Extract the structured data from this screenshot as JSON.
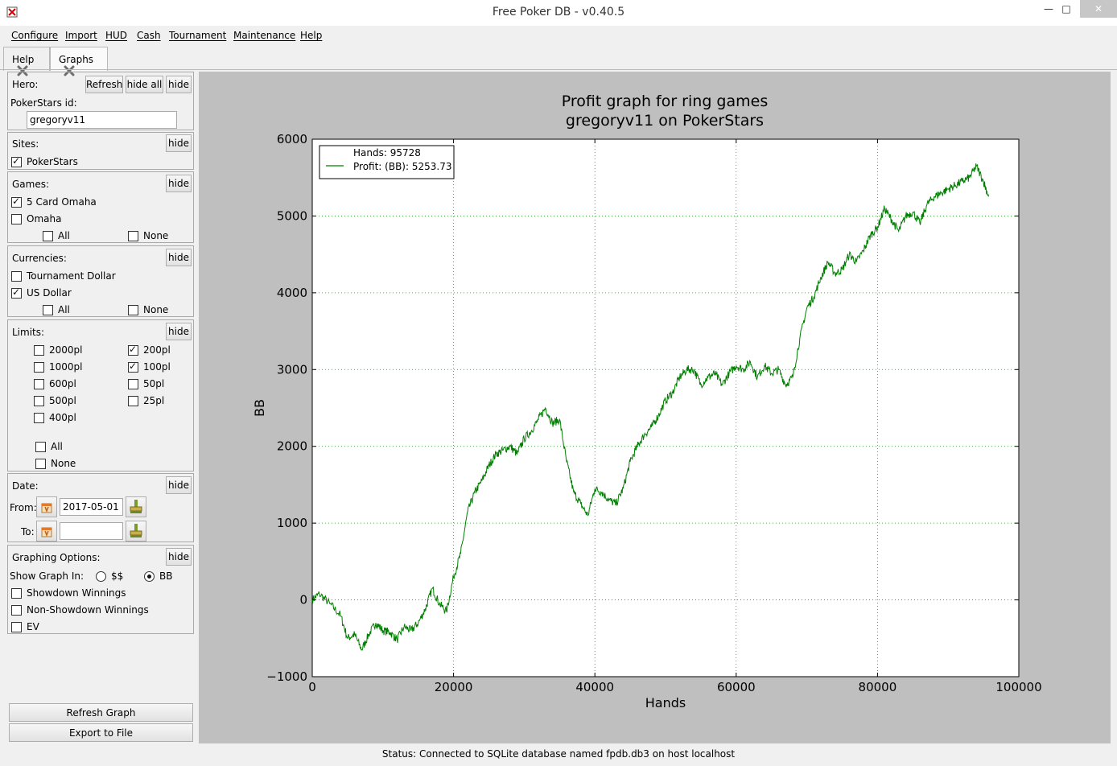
{
  "window": {
    "title": "Free Poker DB - v0.40.5",
    "min": "—",
    "max": "□",
    "close": "✕"
  },
  "menu": [
    "Configure",
    "Import",
    "HUD",
    "Cash",
    "Tournament",
    "Maintenance",
    "Help"
  ],
  "tabs": [
    {
      "label": "Help",
      "active": false
    },
    {
      "label": "Graphs",
      "active": true
    }
  ],
  "filters": {
    "hero": {
      "label": "Hero:",
      "refresh": "Refresh",
      "hide_all": "hide all",
      "hide": "hide",
      "site_id_label": "PokerStars id:",
      "site_id_value": "gregoryv11"
    },
    "sites": {
      "label": "Sites:",
      "hide": "hide",
      "items": [
        {
          "label": "PokerStars",
          "checked": true
        }
      ]
    },
    "games": {
      "label": "Games:",
      "hide": "hide",
      "items": [
        {
          "label": "5 Card Omaha",
          "checked": true
        },
        {
          "label": "Omaha",
          "checked": false
        }
      ],
      "all": "All",
      "none": "None"
    },
    "currencies": {
      "label": "Currencies:",
      "hide": "hide",
      "items": [
        {
          "label": "Tournament Dollar",
          "checked": false
        },
        {
          "label": "US Dollar",
          "checked": true
        }
      ],
      "all": "All",
      "none": "None"
    },
    "limits": {
      "label": "Limits:",
      "hide": "hide",
      "left": [
        {
          "label": "2000pl",
          "checked": false
        },
        {
          "label": "1000pl",
          "checked": false
        },
        {
          "label": "600pl",
          "checked": false
        },
        {
          "label": "500pl",
          "checked": false
        },
        {
          "label": "400pl",
          "checked": false
        }
      ],
      "right": [
        {
          "label": "200pl",
          "checked": true
        },
        {
          "label": "100pl",
          "checked": true
        },
        {
          "label": "50pl",
          "checked": false
        },
        {
          "label": "25pl",
          "checked": false
        }
      ],
      "all": "All",
      "none": "None"
    },
    "date": {
      "label": "Date:",
      "hide": "hide",
      "from_label": "From:",
      "from_value": "2017-05-01",
      "to_label": "To:",
      "to_value": ""
    },
    "graphing": {
      "label": "Graphing Options:",
      "hide": "hide",
      "show_in_label": "Show Graph In:",
      "unit_options": [
        {
          "label": "$$",
          "selected": false
        },
        {
          "label": "BB",
          "selected": true
        }
      ],
      "options": [
        {
          "label": "Showdown Winnings",
          "checked": false
        },
        {
          "label": "Non-Showdown Winnings",
          "checked": false
        },
        {
          "label": "EV",
          "checked": false
        }
      ]
    },
    "refresh_graph": "Refresh Graph",
    "export": "Export to File"
  },
  "colors": {
    "line": "#007f00",
    "plot_bg": "#ffffff",
    "canvas_bg": "#bfbfbf",
    "grid": "#2a8a2a"
  },
  "chart_data": {
    "type": "line",
    "title": "Profit graph for ring games",
    "subtitle": "gregoryv11 on PokerStars",
    "xlabel": "Hands",
    "ylabel": "BB",
    "xlim": [
      0,
      100000
    ],
    "ylim": [
      -1000,
      6000
    ],
    "xticks": [
      0,
      20000,
      40000,
      60000,
      80000,
      100000
    ],
    "yticks": [
      -1000,
      0,
      1000,
      2000,
      3000,
      4000,
      5000,
      6000
    ],
    "grid": true,
    "legend_position": "top-left",
    "legend": {
      "hands_text": "Hands: 95728",
      "profit_text": "Profit: (BB): 5253.73"
    },
    "series": [
      {
        "name": "Profit: (BB): 5253.73",
        "x": [
          0,
          1000,
          2500,
          4000,
          5000,
          6000,
          7000,
          8000,
          9000,
          10000,
          11000,
          12000,
          13000,
          14000,
          15000,
          16000,
          17000,
          18000,
          19000,
          20000,
          21000,
          22000,
          23000,
          24000,
          25000,
          26000,
          27000,
          28000,
          29000,
          30000,
          31000,
          32000,
          33000,
          34000,
          35000,
          36000,
          37000,
          38000,
          39000,
          40000,
          41000,
          42000,
          43000,
          44000,
          45000,
          46000,
          47000,
          48000,
          49000,
          50000,
          51000,
          52000,
          53000,
          54000,
          55000,
          56000,
          57000,
          58000,
          59000,
          60000,
          61000,
          62000,
          63000,
          64000,
          65000,
          66000,
          67000,
          68000,
          69000,
          70000,
          71000,
          72000,
          73000,
          74000,
          75000,
          76000,
          77000,
          78000,
          79000,
          80000,
          81000,
          82000,
          83000,
          84000,
          85000,
          86000,
          87000,
          88000,
          89000,
          90000,
          91000,
          92000,
          93000,
          94000,
          95000,
          95728
        ],
        "y": [
          0,
          80,
          -50,
          -200,
          -500,
          -450,
          -650,
          -450,
          -300,
          -400,
          -420,
          -520,
          -350,
          -400,
          -300,
          -120,
          150,
          -50,
          -150,
          300,
          600,
          1150,
          1400,
          1550,
          1750,
          1900,
          1950,
          2000,
          1900,
          2100,
          2200,
          2350,
          2500,
          2300,
          2350,
          1800,
          1400,
          1250,
          1100,
          1450,
          1400,
          1300,
          1250,
          1450,
          1800,
          2000,
          2150,
          2250,
          2400,
          2600,
          2700,
          2900,
          3000,
          3000,
          2800,
          2900,
          2950,
          2800,
          2950,
          3050,
          3000,
          3100,
          2900,
          3050,
          2950,
          3000,
          2800,
          2900,
          3400,
          3800,
          3950,
          4200,
          4400,
          4250,
          4300,
          4500,
          4400,
          4550,
          4750,
          4850,
          5100,
          4950,
          4800,
          5000,
          5050,
          4900,
          5150,
          5250,
          5300,
          5350,
          5400,
          5450,
          5500,
          5650,
          5450,
          5253.73
        ]
      }
    ]
  },
  "status": "Status: Connected to SQLite database named fpdb.db3 on host localhost"
}
